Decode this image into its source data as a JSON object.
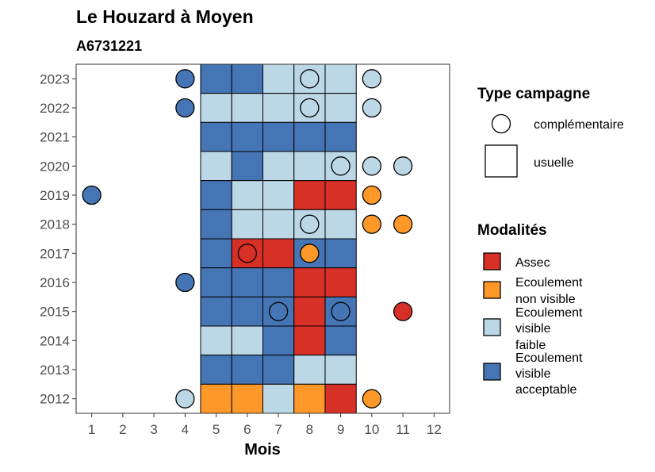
{
  "chart_data": {
    "type": "heatmap",
    "title": "Le Houzard à Moyen",
    "subtitle": "A6731221",
    "xlabel": "Mois",
    "ylabel": "",
    "x_ticks": [
      "1",
      "2",
      "3",
      "4",
      "5",
      "6",
      "7",
      "8",
      "9",
      "10",
      "11",
      "12"
    ],
    "y_ticks": [
      "2012",
      "2013",
      "2014",
      "2015",
      "2016",
      "2017",
      "2018",
      "2019",
      "2020",
      "2021",
      "2022",
      "2023"
    ],
    "xlim": [
      0.5,
      12.5
    ],
    "ylim": [
      2011.5,
      2023.5
    ],
    "grid": false,
    "legend_placement": "right",
    "colors": {
      "assec": "#d73027",
      "non_visible": "#fe9929",
      "faible": "#bcd7e6",
      "acceptable": "#4575b4"
    },
    "legend": {
      "type_title": "Type campagne",
      "type_items": [
        {
          "key": "complementaire",
          "label": "complémentaire"
        },
        {
          "key": "usuelle",
          "label": "usuelle"
        }
      ],
      "mod_title": "Modalités",
      "mod_items": [
        {
          "key": "assec",
          "lines": [
            "Assec"
          ]
        },
        {
          "key": "non_visible",
          "lines": [
            "Ecoulement",
            "non visible"
          ]
        },
        {
          "key": "faible",
          "lines": [
            "Ecoulement",
            "visible",
            "faible"
          ]
        },
        {
          "key": "acceptable",
          "lines": [
            "Ecoulement",
            "visible",
            "acceptable"
          ]
        }
      ]
    },
    "usuelle": [
      {
        "year": 2023,
        "values": [
          [
            "5",
            "acceptable"
          ],
          [
            "6",
            "acceptable"
          ],
          [
            "7",
            "faible"
          ],
          [
            "8",
            "faible"
          ],
          [
            "9",
            "faible"
          ]
        ]
      },
      {
        "year": 2022,
        "values": [
          [
            "5",
            "faible"
          ],
          [
            "6",
            "faible"
          ],
          [
            "7",
            "faible"
          ],
          [
            "8",
            "faible"
          ],
          [
            "9",
            "faible"
          ]
        ]
      },
      {
        "year": 2021,
        "values": [
          [
            "5",
            "acceptable"
          ],
          [
            "6",
            "acceptable"
          ],
          [
            "7",
            "acceptable"
          ],
          [
            "8",
            "acceptable"
          ],
          [
            "9",
            "acceptable"
          ]
        ]
      },
      {
        "year": 2020,
        "values": [
          [
            "5",
            "faible"
          ],
          [
            "6",
            "acceptable"
          ],
          [
            "7",
            "faible"
          ],
          [
            "8",
            "faible"
          ],
          [
            "9",
            "faible"
          ]
        ]
      },
      {
        "year": 2019,
        "values": [
          [
            "5",
            "acceptable"
          ],
          [
            "6",
            "faible"
          ],
          [
            "7",
            "faible"
          ],
          [
            "8",
            "assec"
          ],
          [
            "9",
            "assec"
          ]
        ]
      },
      {
        "year": 2018,
        "values": [
          [
            "5",
            "acceptable"
          ],
          [
            "6",
            "faible"
          ],
          [
            "7",
            "faible"
          ],
          [
            "8",
            "faible"
          ],
          [
            "9",
            "faible"
          ]
        ]
      },
      {
        "year": 2017,
        "values": [
          [
            "5",
            "acceptable"
          ],
          [
            "6",
            "assec"
          ],
          [
            "7",
            "assec"
          ],
          [
            "8",
            "acceptable"
          ],
          [
            "9",
            "acceptable"
          ]
        ]
      },
      {
        "year": 2016,
        "values": [
          [
            "5",
            "acceptable"
          ],
          [
            "6",
            "acceptable"
          ],
          [
            "7",
            "acceptable"
          ],
          [
            "8",
            "assec"
          ],
          [
            "9",
            "assec"
          ]
        ]
      },
      {
        "year": 2015,
        "values": [
          [
            "5",
            "acceptable"
          ],
          [
            "6",
            "acceptable"
          ],
          [
            "7",
            "acceptable"
          ],
          [
            "8",
            "assec"
          ],
          [
            "9",
            "acceptable"
          ]
        ]
      },
      {
        "year": 2014,
        "values": [
          [
            "5",
            "faible"
          ],
          [
            "6",
            "faible"
          ],
          [
            "7",
            "acceptable"
          ],
          [
            "8",
            "assec"
          ],
          [
            "9",
            "acceptable"
          ]
        ]
      },
      {
        "year": 2013,
        "values": [
          [
            "5",
            "acceptable"
          ],
          [
            "6",
            "acceptable"
          ],
          [
            "7",
            "acceptable"
          ],
          [
            "8",
            "faible"
          ],
          [
            "9",
            "faible"
          ]
        ]
      },
      {
        "year": 2012,
        "values": [
          [
            "5",
            "non_visible"
          ],
          [
            "6",
            "non_visible"
          ],
          [
            "7",
            "faible"
          ],
          [
            "8",
            "non_visible"
          ],
          [
            "9",
            "assec"
          ]
        ]
      }
    ],
    "complementaire": [
      {
        "year": 2023,
        "month": 4,
        "mod": "acceptable"
      },
      {
        "year": 2023,
        "month": 8,
        "mod": "faible"
      },
      {
        "year": 2023,
        "month": 10,
        "mod": "faible"
      },
      {
        "year": 2022,
        "month": 4,
        "mod": "acceptable"
      },
      {
        "year": 2022,
        "month": 8,
        "mod": "faible"
      },
      {
        "year": 2022,
        "month": 10,
        "mod": "faible"
      },
      {
        "year": 2020,
        "month": 9,
        "mod": "faible"
      },
      {
        "year": 2020,
        "month": 10,
        "mod": "faible"
      },
      {
        "year": 2020,
        "month": 11,
        "mod": "faible"
      },
      {
        "year": 2019,
        "month": 1,
        "mod": "acceptable"
      },
      {
        "year": 2019,
        "month": 10,
        "mod": "non_visible"
      },
      {
        "year": 2018,
        "month": 8,
        "mod": "faible"
      },
      {
        "year": 2018,
        "month": 10,
        "mod": "non_visible"
      },
      {
        "year": 2018,
        "month": 11,
        "mod": "non_visible"
      },
      {
        "year": 2017,
        "month": 6,
        "mod": "assec"
      },
      {
        "year": 2017,
        "month": 8,
        "mod": "non_visible"
      },
      {
        "year": 2016,
        "month": 4,
        "mod": "acceptable"
      },
      {
        "year": 2015,
        "month": 7,
        "mod": "acceptable"
      },
      {
        "year": 2015,
        "month": 9,
        "mod": "acceptable"
      },
      {
        "year": 2015,
        "month": 11,
        "mod": "assec"
      },
      {
        "year": 2012,
        "month": 4,
        "mod": "faible"
      },
      {
        "year": 2012,
        "month": 10,
        "mod": "non_visible"
      }
    ]
  }
}
